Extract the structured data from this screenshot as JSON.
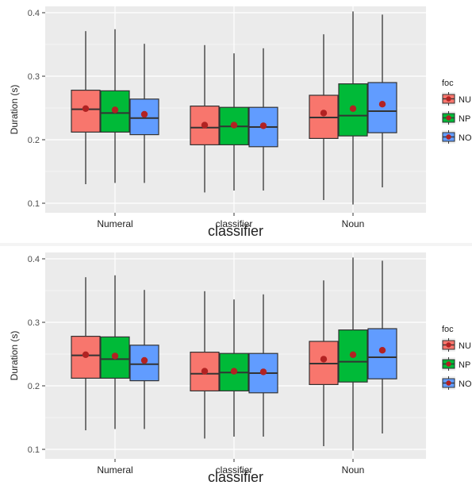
{
  "chart_data": [
    {
      "type": "boxplot",
      "xlabel": "classifier",
      "ylabel": "Duration (s)",
      "ylim": [
        0.085,
        0.41
      ],
      "yticks": [
        "0.1",
        "0.2",
        "0.3",
        "0.4"
      ],
      "ytick_values": [
        0.1,
        0.2,
        0.3,
        0.4
      ],
      "grid": true,
      "legend_position": "right",
      "legend_title": "foc",
      "categories": [
        "Numeral",
        "classifier",
        "Noun"
      ],
      "series": [
        {
          "name": "NU",
          "color": "#F8766D",
          "stats": [
            {
              "min": 0.13,
              "q1": 0.212,
              "median": 0.248,
              "q3": 0.278,
              "max": 0.371,
              "mean": 0.249
            },
            {
              "min": 0.117,
              "q1": 0.192,
              "median": 0.219,
              "q3": 0.253,
              "max": 0.349,
              "mean": 0.223
            },
            {
              "min": 0.105,
              "q1": 0.202,
              "median": 0.235,
              "q3": 0.27,
              "max": 0.366,
              "mean": 0.242
            }
          ]
        },
        {
          "name": "NP",
          "color": "#00BA38",
          "stats": [
            {
              "min": 0.132,
              "q1": 0.212,
              "median": 0.242,
              "q3": 0.277,
              "max": 0.374,
              "mean": 0.247
            },
            {
              "min": 0.12,
              "q1": 0.192,
              "median": 0.221,
              "q3": 0.251,
              "max": 0.336,
              "mean": 0.223
            },
            {
              "min": 0.098,
              "q1": 0.206,
              "median": 0.238,
              "q3": 0.288,
              "max": 0.402,
              "mean": 0.249
            }
          ]
        },
        {
          "name": "NO",
          "color": "#619CFF",
          "stats": [
            {
              "min": 0.132,
              "q1": 0.208,
              "median": 0.234,
              "q3": 0.264,
              "max": 0.351,
              "mean": 0.24
            },
            {
              "min": 0.12,
              "q1": 0.189,
              "median": 0.22,
              "q3": 0.251,
              "max": 0.344,
              "mean": 0.222
            },
            {
              "min": 0.125,
              "q1": 0.211,
              "median": 0.245,
              "q3": 0.29,
              "max": 0.397,
              "mean": 0.256
            }
          ]
        }
      ]
    },
    {
      "type": "boxplot",
      "xlabel": "classifier",
      "ylabel": "Duration (s)",
      "ylim": [
        0.085,
        0.41
      ],
      "yticks": [
        "0.1",
        "0.2",
        "0.3",
        "0.4"
      ],
      "ytick_values": [
        0.1,
        0.2,
        0.3,
        0.4
      ],
      "grid": true,
      "legend_position": "right",
      "legend_title": "foc",
      "categories": [
        "Numeral",
        "classifier",
        "Noun"
      ],
      "series": [
        {
          "name": "NU",
          "color": "#F8766D",
          "stats": [
            {
              "min": 0.13,
              "q1": 0.212,
              "median": 0.248,
              "q3": 0.278,
              "max": 0.371,
              "mean": 0.249
            },
            {
              "min": 0.117,
              "q1": 0.192,
              "median": 0.219,
              "q3": 0.253,
              "max": 0.349,
              "mean": 0.223
            },
            {
              "min": 0.105,
              "q1": 0.202,
              "median": 0.235,
              "q3": 0.27,
              "max": 0.366,
              "mean": 0.242
            }
          ]
        },
        {
          "name": "NP",
          "color": "#00BA38",
          "stats": [
            {
              "min": 0.132,
              "q1": 0.212,
              "median": 0.242,
              "q3": 0.277,
              "max": 0.374,
              "mean": 0.247
            },
            {
              "min": 0.12,
              "q1": 0.192,
              "median": 0.221,
              "q3": 0.251,
              "max": 0.336,
              "mean": 0.223
            },
            {
              "min": 0.098,
              "q1": 0.206,
              "median": 0.238,
              "q3": 0.288,
              "max": 0.402,
              "mean": 0.249
            }
          ]
        },
        {
          "name": "NO",
          "color": "#619CFF",
          "stats": [
            {
              "min": 0.132,
              "q1": 0.208,
              "median": 0.234,
              "q3": 0.264,
              "max": 0.351,
              "mean": 0.24
            },
            {
              "min": 0.12,
              "q1": 0.189,
              "median": 0.22,
              "q3": 0.251,
              "max": 0.344,
              "mean": 0.222
            },
            {
              "min": 0.125,
              "q1": 0.211,
              "median": 0.245,
              "q3": 0.29,
              "max": 0.397,
              "mean": 0.256
            }
          ]
        }
      ]
    }
  ],
  "colors": {
    "panel_background": "#EBEBEB",
    "gridline": "#FFFFFF",
    "mean_point": "#B22222",
    "outline": "#333333"
  }
}
